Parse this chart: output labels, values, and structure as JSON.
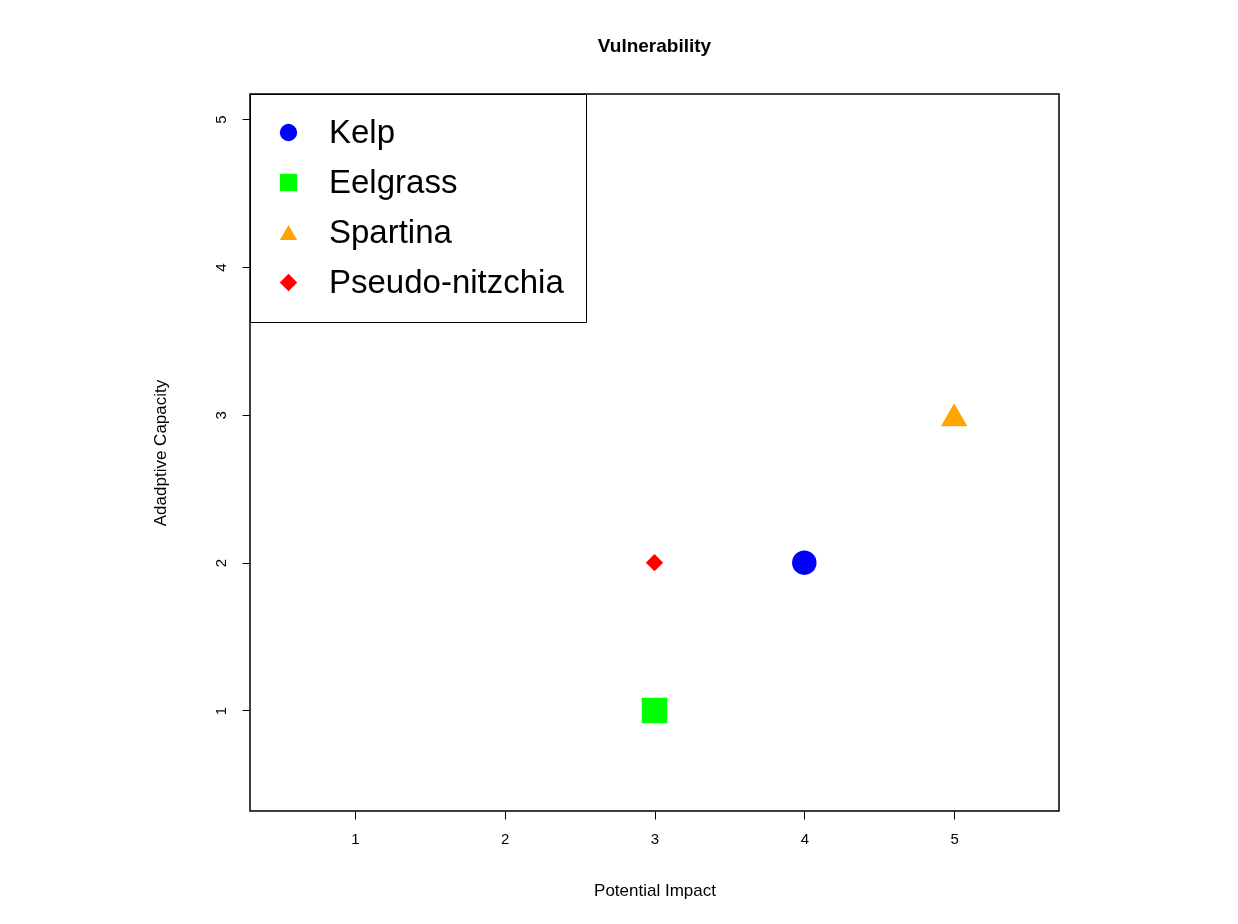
{
  "chart_data": {
    "type": "scatter",
    "title": "Vulnerability",
    "xlabel": "Potential Impact",
    "ylabel": "Adadptive Capacity",
    "xlim": [
      0.3,
      5.7
    ],
    "ylim": [
      0.32,
      5.17
    ],
    "xticks": [
      1,
      2,
      3,
      4,
      5
    ],
    "yticks": [
      1,
      2,
      3,
      4,
      5
    ],
    "legend": "top left",
    "series": [
      {
        "name": "Kelp",
        "color": "#0000ff",
        "marker": "circle",
        "x": [
          4
        ],
        "values": [
          2
        ]
      },
      {
        "name": "Eelgrass",
        "color": "#00ff00",
        "marker": "square",
        "x": [
          3
        ],
        "values": [
          1
        ]
      },
      {
        "name": "Spartina",
        "color": "#ffa500",
        "marker": "triangle",
        "x": [
          5
        ],
        "values": [
          3
        ]
      },
      {
        "name": "Pseudo-nitzchia",
        "color": "#ff0000",
        "marker": "diamond",
        "x": [
          3
        ],
        "values": [
          2
        ]
      }
    ]
  }
}
